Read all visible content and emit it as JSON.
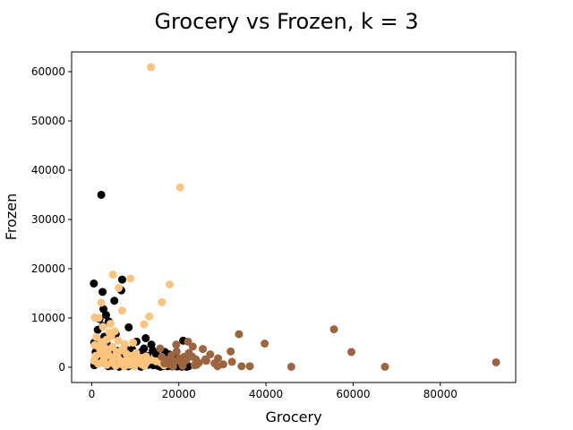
{
  "chart_data": {
    "type": "scatter",
    "title": "Grocery vs Frozen, k = 3",
    "xlabel": "Grocery",
    "ylabel": "Frozen",
    "xlim": [
      -4600,
      97300
    ],
    "ylim": [
      -3100,
      64000
    ],
    "xticks": [
      0,
      20000,
      40000,
      60000,
      80000
    ],
    "yticks": [
      0,
      10000,
      20000,
      30000,
      40000,
      50000,
      60000
    ],
    "grid": false,
    "legend": "none",
    "series": [
      {
        "color": "#000000",
        "points": [
          [
            2200,
            35000
          ],
          [
            500,
            17000
          ],
          [
            2500,
            15300
          ],
          [
            7000,
            17800
          ],
          [
            6800,
            15600
          ],
          [
            5200,
            13500
          ],
          [
            2700,
            11800
          ],
          [
            3300,
            10600
          ],
          [
            1800,
            9800
          ],
          [
            3900,
            9300
          ],
          [
            2600,
            8400
          ],
          [
            1400,
            7600
          ],
          [
            8500,
            8100
          ],
          [
            5500,
            6700
          ],
          [
            2900,
            6200
          ],
          [
            12400,
            5900
          ],
          [
            10300,
            5200
          ],
          [
            21000,
            5400
          ],
          [
            13700,
            4600
          ],
          [
            600,
            5000
          ],
          [
            1100,
            4200
          ],
          [
            2000,
            3600
          ],
          [
            3100,
            3000
          ],
          [
            4200,
            2600
          ],
          [
            5300,
            2100
          ],
          [
            6400,
            1800
          ],
          [
            7500,
            1500
          ],
          [
            8600,
            1200
          ],
          [
            9700,
            1000
          ],
          [
            10800,
            800
          ],
          [
            11900,
            600
          ],
          [
            13000,
            500
          ],
          [
            14100,
            400
          ],
          [
            15200,
            300
          ],
          [
            16300,
            250
          ],
          [
            17400,
            200
          ],
          [
            18500,
            180
          ],
          [
            19600,
            150
          ],
          [
            20700,
            120
          ],
          [
            21800,
            100
          ],
          [
            600,
            400
          ],
          [
            1200,
            900
          ],
          [
            1800,
            1400
          ],
          [
            2400,
            1900
          ],
          [
            3000,
            2400
          ],
          [
            3600,
            700
          ],
          [
            4200,
            1100
          ],
          [
            4800,
            300
          ],
          [
            5400,
            1600
          ],
          [
            6000,
            2200
          ],
          [
            6600,
            400
          ],
          [
            7200,
            900
          ],
          [
            7800,
            2800
          ],
          [
            8400,
            200
          ],
          [
            9000,
            1300
          ],
          [
            9600,
            2500
          ],
          [
            10200,
            600
          ],
          [
            11000,
            1900
          ],
          [
            11600,
            3200
          ],
          [
            12200,
            1200
          ],
          [
            12800,
            2300
          ],
          [
            13400,
            800
          ],
          [
            14000,
            3400
          ],
          [
            14600,
            1700
          ],
          [
            15400,
            900
          ],
          [
            16000,
            2000
          ],
          [
            16600,
            1100
          ],
          [
            17200,
            400
          ],
          [
            17800,
            2600
          ],
          [
            18400,
            1300
          ],
          [
            19000,
            700
          ],
          [
            19800,
            1900
          ],
          [
            20400,
            300
          ],
          [
            1500,
            2700
          ],
          [
            2300,
            5500
          ],
          [
            3500,
            4700
          ],
          [
            4400,
            3900
          ],
          [
            900,
            3100
          ],
          [
            3800,
            200
          ],
          [
            5900,
            3300
          ],
          [
            6900,
            2700
          ],
          [
            7600,
            4100
          ],
          [
            9300,
            3600
          ],
          [
            10600,
            2800
          ],
          [
            12000,
            3800
          ],
          [
            13200,
            1500
          ],
          [
            14800,
            2600
          ],
          [
            16800,
            3100
          ],
          [
            18200,
            900
          ],
          [
            21500,
            600
          ],
          [
            1300,
            1500
          ],
          [
            2800,
            1000
          ],
          [
            4600,
            500
          ],
          [
            6300,
            100
          ],
          [
            8200,
            600
          ],
          [
            11300,
            100
          ],
          [
            15800,
            100
          ],
          [
            19300,
            2300
          ],
          [
            22200,
            200
          ]
        ]
      },
      {
        "color": "#fdc47d",
        "points": [
          [
            13600,
            60900
          ],
          [
            20300,
            36500
          ],
          [
            4900,
            18800
          ],
          [
            8900,
            18000
          ],
          [
            6200,
            16100
          ],
          [
            17900,
            16800
          ],
          [
            2200,
            13100
          ],
          [
            16100,
            13200
          ],
          [
            7000,
            11500
          ],
          [
            13200,
            10300
          ],
          [
            700,
            10100
          ],
          [
            1600,
            10000
          ],
          [
            12000,
            8700
          ],
          [
            4300,
            8800
          ],
          [
            5300,
            7300
          ],
          [
            1100,
            6100
          ],
          [
            2200,
            5100
          ],
          [
            3400,
            5600
          ],
          [
            4500,
            6300
          ],
          [
            6100,
            5400
          ],
          [
            7600,
            4700
          ],
          [
            9500,
            5000
          ],
          [
            700,
            4500
          ],
          [
            1700,
            4000
          ],
          [
            2700,
            4400
          ],
          [
            3700,
            3600
          ],
          [
            4800,
            4100
          ],
          [
            5800,
            3100
          ],
          [
            6900,
            3400
          ],
          [
            8000,
            2700
          ],
          [
            9100,
            2300
          ],
          [
            10200,
            2900
          ],
          [
            11400,
            1900
          ],
          [
            12500,
            2200
          ],
          [
            13700,
            1500
          ],
          [
            14800,
            1200
          ],
          [
            15900,
            900
          ],
          [
            17000,
            700
          ],
          [
            900,
            2300
          ],
          [
            1900,
            2800
          ],
          [
            2900,
            1800
          ],
          [
            3900,
            2500
          ],
          [
            4900,
            1600
          ],
          [
            6000,
            2000
          ],
          [
            7100,
            1200
          ],
          [
            8200,
            1700
          ],
          [
            9300,
            900
          ],
          [
            10400,
            1400
          ],
          [
            11500,
            600
          ],
          [
            12600,
            1000
          ],
          [
            600,
            1300
          ],
          [
            1500,
            700
          ],
          [
            2500,
            1100
          ],
          [
            3500,
            500
          ],
          [
            4500,
            900
          ],
          [
            5500,
            300
          ],
          [
            6500,
            700
          ],
          [
            7500,
            200
          ],
          [
            8600,
            500
          ],
          [
            9800,
            200
          ],
          [
            3200,
            3100
          ],
          [
            5600,
            2400
          ],
          [
            7300,
            3800
          ],
          [
            4100,
            7000
          ],
          [
            2600,
            8200
          ],
          [
            16600,
            400
          ],
          [
            12100,
            300
          ]
        ]
      },
      {
        "color": "#9c6540",
        "points": [
          [
            92800,
            1000
          ],
          [
            67300,
            100
          ],
          [
            59600,
            3100
          ],
          [
            55600,
            7700
          ],
          [
            45800,
            100
          ],
          [
            39700,
            4800
          ],
          [
            36300,
            200
          ],
          [
            34400,
            200
          ],
          [
            33800,
            6700
          ],
          [
            32200,
            1100
          ],
          [
            31900,
            3200
          ],
          [
            30200,
            600
          ],
          [
            29000,
            1800
          ],
          [
            28200,
            800
          ],
          [
            27200,
            2600
          ],
          [
            26300,
            1300
          ],
          [
            25500,
            3700
          ],
          [
            24600,
            900
          ],
          [
            23900,
            1600
          ],
          [
            23000,
            2200
          ],
          [
            23200,
            4200
          ],
          [
            22300,
            2900
          ],
          [
            21700,
            1400
          ],
          [
            21200,
            2100
          ],
          [
            20600,
            900
          ],
          [
            20100,
            1800
          ],
          [
            19500,
            3200
          ],
          [
            18900,
            1100
          ],
          [
            18300,
            2400
          ],
          [
            17800,
            600
          ],
          [
            17200,
            1500
          ],
          [
            16700,
            800
          ],
          [
            16100,
            2100
          ],
          [
            22100,
            5200
          ],
          [
            19400,
            4600
          ],
          [
            26100,
            1600
          ],
          [
            24100,
            500
          ],
          [
            28900,
            200
          ],
          [
            20900,
            300
          ],
          [
            15700,
            3800
          ],
          [
            18700,
            200
          ],
          [
            23600,
            400
          ]
        ]
      }
    ]
  }
}
